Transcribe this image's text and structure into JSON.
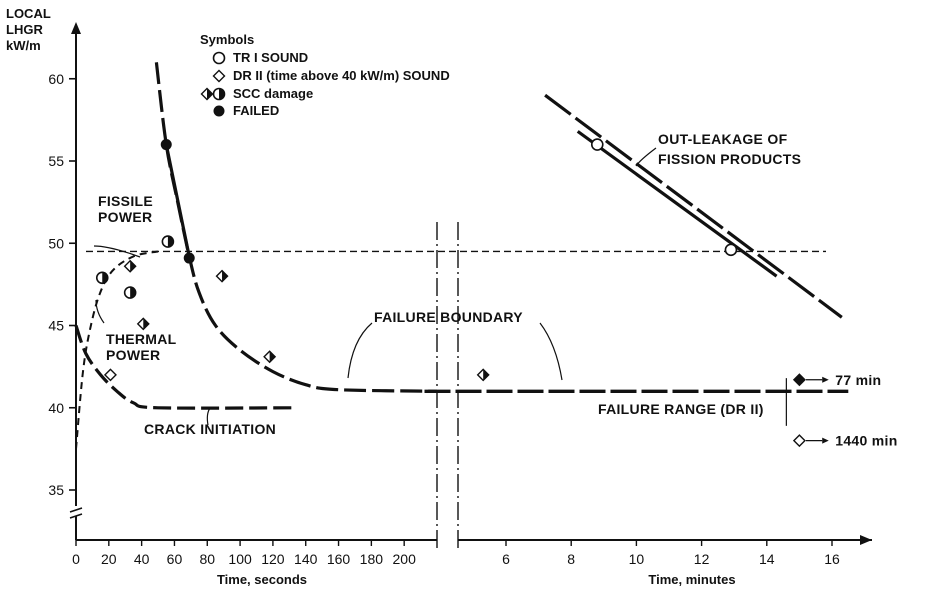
{
  "chart_data": {
    "type": "scatter",
    "ylabel_lines": [
      "LOCAL",
      "LHGR",
      "kW/m"
    ],
    "yticks": [
      35,
      40,
      45,
      50,
      55,
      60
    ],
    "ylim": [
      33.5,
      63
    ],
    "left_panel": {
      "xlabel": "Time, seconds",
      "xticks": [
        0,
        20,
        40,
        60,
        80,
        100,
        120,
        140,
        160,
        180,
        200
      ],
      "xlim": [
        0,
        220
      ]
    },
    "right_panel": {
      "xlabel": "Time, minutes",
      "xticks": [
        6,
        8,
        10,
        12,
        14,
        16
      ],
      "xlim": [
        3.5,
        16.8
      ]
    },
    "legend": {
      "title": "Symbols",
      "entries": [
        {
          "marker": "circle-open",
          "label": "TR I SOUND"
        },
        {
          "marker": "diamond-open",
          "label": "DR II (time above 40 kW/m) SOUND"
        },
        {
          "marker": "half-filled",
          "label": "SCC damage"
        },
        {
          "marker": "circle-filled",
          "label": "FAILED"
        }
      ]
    },
    "annotations": {
      "fissile_power": [
        "FISSILE",
        "POWER"
      ],
      "thermal_power": [
        "THERMAL",
        "POWER"
      ],
      "failure_boundary": "FAILURE BOUNDARY",
      "crack_initiation": "CRACK INITIATION",
      "out_leakage": [
        "OUT-LEAKAGE OF",
        "FISSION PRODUCTS"
      ],
      "failure_range": "FAILURE RANGE (DR II)",
      "time_77": "77 min",
      "time_1440": "1440 min"
    },
    "fissile_power_level": 49.5,
    "failure_boundary_seconds": [
      {
        "x": 49,
        "y": 61
      },
      {
        "x": 55,
        "y": 56
      },
      {
        "x": 62,
        "y": 52.5
      },
      {
        "x": 69,
        "y": 49.2
      },
      {
        "x": 75,
        "y": 47
      },
      {
        "x": 85,
        "y": 45
      },
      {
        "x": 100,
        "y": 43.5
      },
      {
        "x": 120,
        "y": 42.2
      },
      {
        "x": 140,
        "y": 41.4
      },
      {
        "x": 160,
        "y": 41.1
      },
      {
        "x": 220,
        "y": 41
      }
    ],
    "failure_boundary_minutes": [
      {
        "x": 3.5,
        "y": 41
      },
      {
        "x": 16.5,
        "y": 41
      }
    ],
    "thermal_power_curve": [
      {
        "x": 0,
        "y": 37.5
      },
      {
        "x": 4,
        "y": 42
      },
      {
        "x": 8,
        "y": 44.5
      },
      {
        "x": 14,
        "y": 46.8
      },
      {
        "x": 22,
        "y": 48.3
      },
      {
        "x": 35,
        "y": 49.2
      },
      {
        "x": 50,
        "y": 49.5
      }
    ],
    "crack_initiation_curve": [
      {
        "x": 0,
        "y": 45
      },
      {
        "x": 6,
        "y": 43.3
      },
      {
        "x": 15,
        "y": 42
      },
      {
        "x": 25,
        "y": 41
      },
      {
        "x": 35,
        "y": 40.3
      },
      {
        "x": 50,
        "y": 40
      },
      {
        "x": 133,
        "y": 40
      }
    ],
    "out_leakage_line": [
      {
        "x": 7.2,
        "y": 59
      },
      {
        "x": 16.3,
        "y": 45.5
      }
    ],
    "points_seconds": [
      {
        "x": 16,
        "y": 47.9,
        "marker": "half-filled"
      },
      {
        "x": 21,
        "y": 42,
        "marker": "diamond-open"
      },
      {
        "x": 33,
        "y": 48.6,
        "marker": "diamond-half"
      },
      {
        "x": 33,
        "y": 47,
        "marker": "half-filled"
      },
      {
        "x": 41,
        "y": 45.1,
        "marker": "diamond-half"
      },
      {
        "x": 56,
        "y": 50.1,
        "marker": "half-filled"
      },
      {
        "x": 55,
        "y": 56,
        "marker": "circle-filled"
      },
      {
        "x": 69,
        "y": 49.1,
        "marker": "circle-filled"
      },
      {
        "x": 89,
        "y": 48,
        "marker": "diamond-half"
      },
      {
        "x": 118,
        "y": 43.1,
        "marker": "diamond-half"
      }
    ],
    "points_minutes": [
      {
        "x": 5.3,
        "y": 42,
        "marker": "diamond-half"
      },
      {
        "x": 8.8,
        "y": 56,
        "marker": "circle-open"
      },
      {
        "x": 12.9,
        "y": 49.6,
        "marker": "circle-open"
      },
      {
        "x": 15,
        "y": 41.7,
        "marker": "diamond-filled"
      },
      {
        "x": 15,
        "y": 38,
        "marker": "diamond-open"
      }
    ]
  }
}
